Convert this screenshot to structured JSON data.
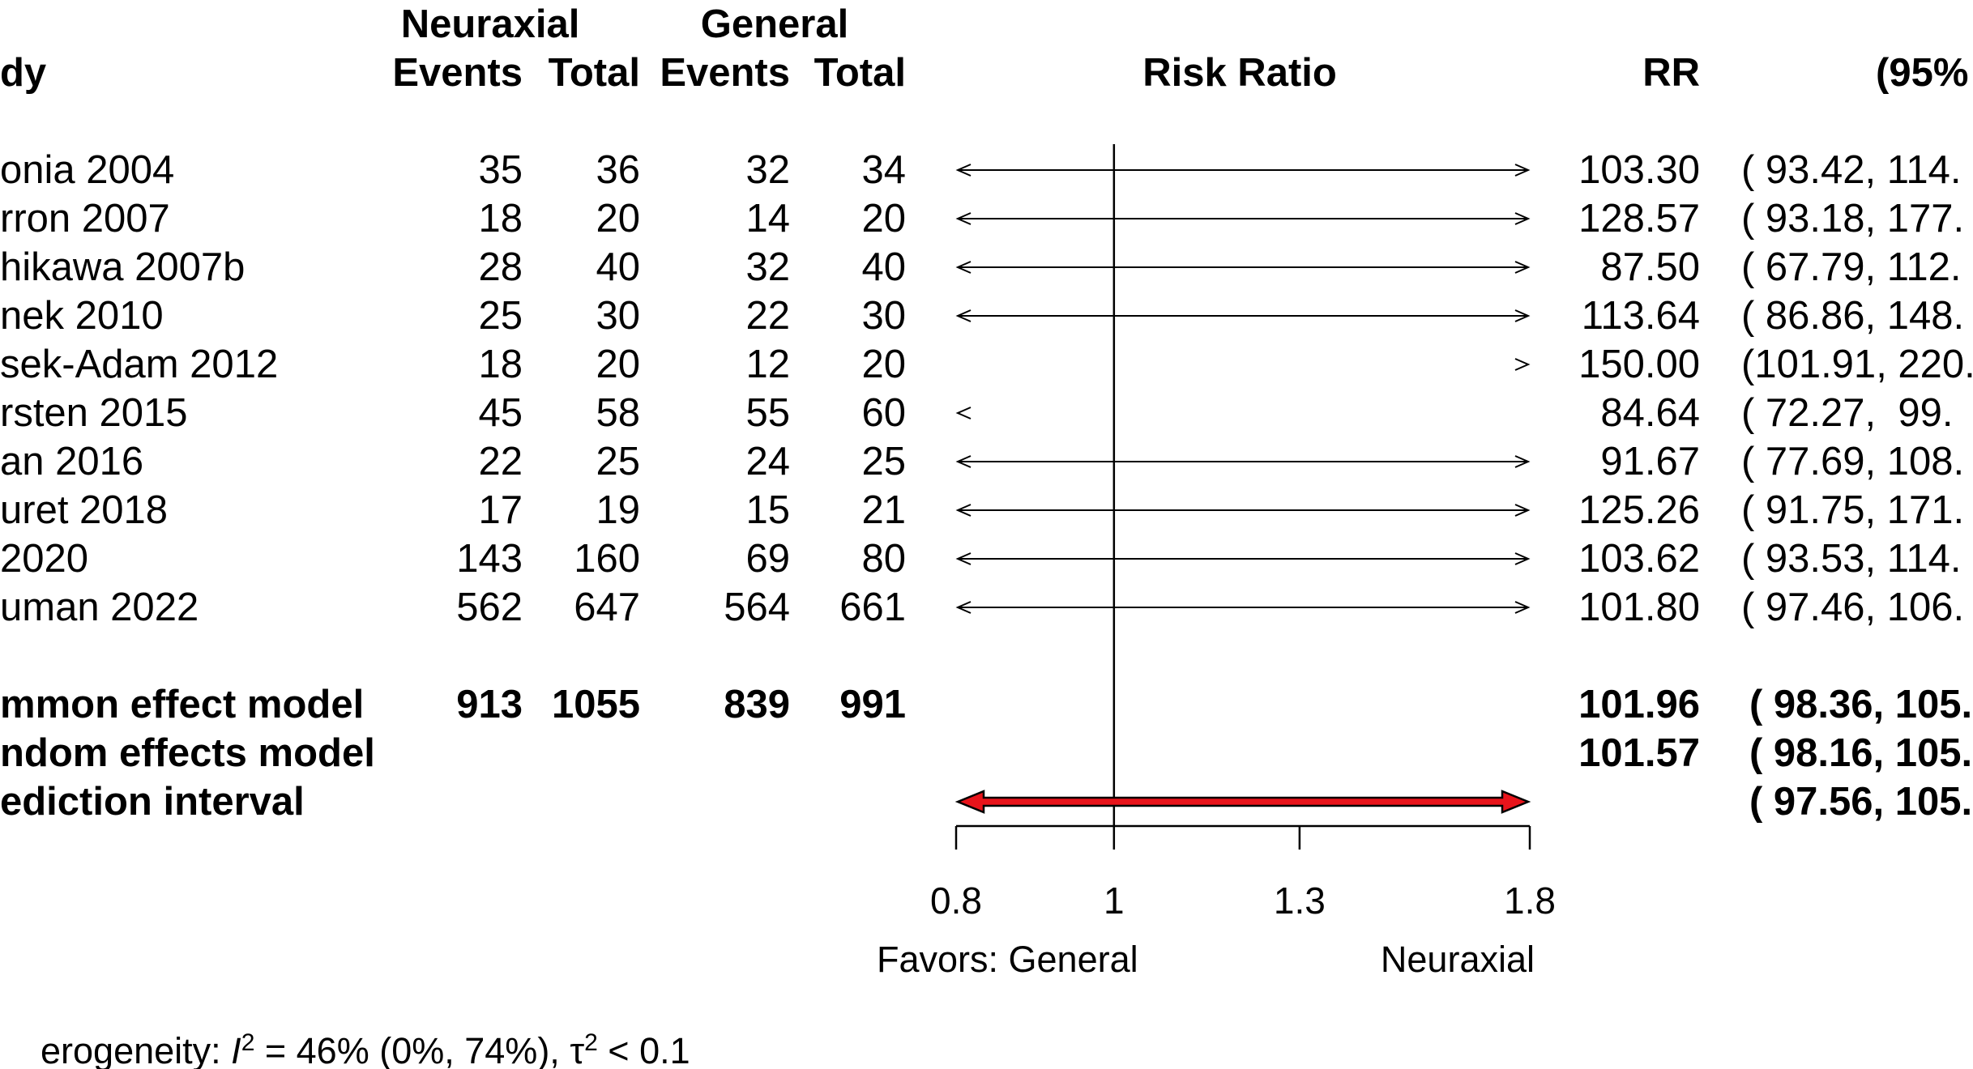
{
  "headers": {
    "study": "dy",
    "group1": "Neuraxial",
    "group2": "General",
    "events": "Events",
    "total": "Total",
    "plot": "Risk Ratio",
    "rr": "RR",
    "ci": "(95%"
  },
  "studies": [
    {
      "name": "onia 2004",
      "e1": "35",
      "t1": "36",
      "e2": "32",
      "t2": "34",
      "rr": "103.30",
      "ci": "( 93.42, 114."
    },
    {
      "name": "rron 2007",
      "e1": "18",
      "t1": "20",
      "e2": "14",
      "t2": "20",
      "rr": "128.57",
      "ci": "( 93.18, 177."
    },
    {
      "name": "hikawa 2007b",
      "e1": "28",
      "t1": "40",
      "e2": "32",
      "t2": "40",
      "rr": "87.50",
      "ci": "( 67.79, 112."
    },
    {
      "name": "nek 2010",
      "e1": "25",
      "t1": "30",
      "e2": "22",
      "t2": "30",
      "rr": "113.64",
      "ci": "( 86.86, 148."
    },
    {
      "name": "sek-Adam 2012",
      "e1": "18",
      "t1": "20",
      "e2": "12",
      "t2": "20",
      "rr": "150.00",
      "ci": "(101.91, 220."
    },
    {
      "name": "rsten 2015",
      "e1": "45",
      "t1": "58",
      "e2": "55",
      "t2": "60",
      "rr": "84.64",
      "ci": "( 72.27,  99."
    },
    {
      "name": "an 2016",
      "e1": "22",
      "t1": "25",
      "e2": "24",
      "t2": "25",
      "rr": "91.67",
      "ci": "( 77.69, 108."
    },
    {
      "name": "uret 2018",
      "e1": "17",
      "t1": "19",
      "e2": "15",
      "t2": "21",
      "rr": "125.26",
      "ci": "( 91.75, 171."
    },
    {
      "name": "2020",
      "e1": "143",
      "t1": "160",
      "e2": "69",
      "t2": "80",
      "rr": "103.62",
      "ci": "( 93.53, 114."
    },
    {
      "name": "uman 2022",
      "e1": "562",
      "t1": "647",
      "e2": "564",
      "t2": "661",
      "rr": "101.80",
      "ci": "( 97.46, 106."
    }
  ],
  "summary": {
    "common": {
      "name": "mmon effect model",
      "e1": "913",
      "t1": "1055",
      "e2": "839",
      "t2": "991",
      "rr": "101.96",
      "ci": "( 98.36, 105."
    },
    "random": {
      "name": "ndom effects model",
      "rr": "101.57",
      "ci": "( 98.16, 105."
    },
    "prediction": {
      "name": "ediction interval",
      "ci": "( 97.56, 105."
    }
  },
  "heterogeneity": {
    "prefix": "erogeneity: ",
    "i_label": "I",
    "sup": "2",
    "mid": " = 46% (0%, 74%), ",
    "tau": "τ",
    "end": " < 0.1"
  },
  "chart_data": {
    "type": "forest",
    "xlabel_left": "Favors: General",
    "xlabel_right": "Neuraxial",
    "xticks": [
      0.8,
      1,
      1.3,
      1.8
    ],
    "xtick_labels": [
      "0.8",
      "1",
      "1.3",
      "1.8"
    ],
    "xlim": [
      0.8,
      1.8
    ],
    "scale": "log",
    "reference_line": 1,
    "arrow_rows": [
      {
        "left": true,
        "right": true
      },
      {
        "left": true,
        "right": true
      },
      {
        "left": true,
        "right": true
      },
      {
        "left": true,
        "right": true
      },
      {
        "left": false,
        "right": true
      },
      {
        "left": true,
        "right": false
      },
      {
        "left": true,
        "right": true
      },
      {
        "left": true,
        "right": true
      },
      {
        "left": true,
        "right": true
      },
      {
        "left": true,
        "right": true
      }
    ],
    "prediction_bar_color": "#e8141b",
    "prediction_interval": {
      "left_arrow": true,
      "right_arrow": true
    }
  }
}
